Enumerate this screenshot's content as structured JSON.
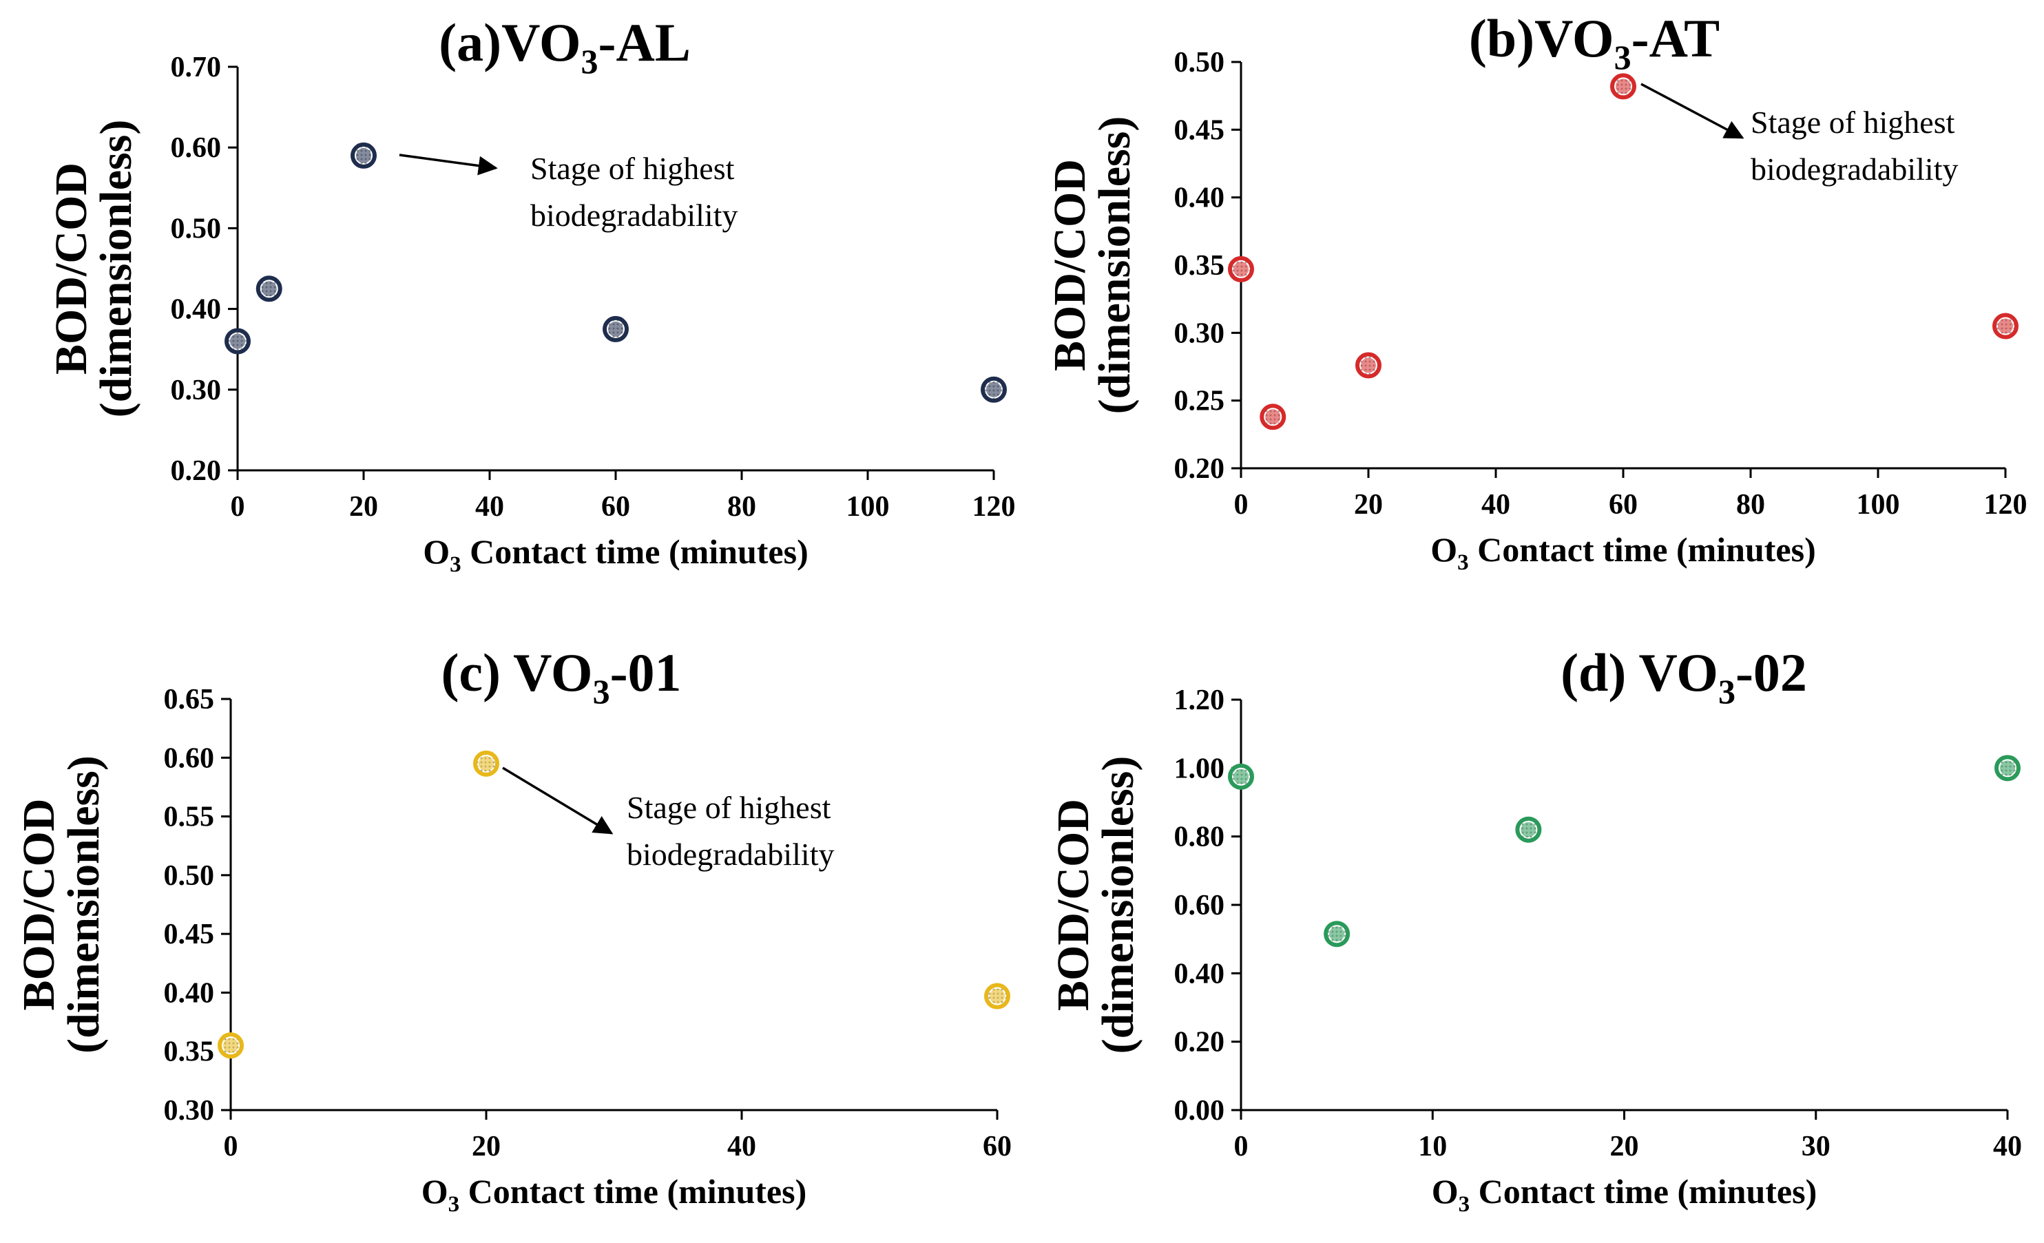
{
  "chart_data": [
    {
      "id": "a",
      "type": "scatter",
      "title": {
        "prefix": "(a)",
        "main": "VO",
        "sub": "3",
        "suffix": "-AL"
      },
      "xlabel": {
        "pre": "O",
        "sub": "3",
        "post": " Contact time (minutes)"
      },
      "ylabel": {
        "line1": "BOD/COD",
        "line2": "(dimensionless)"
      },
      "xlim": [
        0,
        120
      ],
      "xticks": [
        0,
        20,
        40,
        60,
        80,
        100,
        120
      ],
      "xtick_labels": [
        "0",
        "20",
        "40",
        "60",
        "80",
        "100",
        "120"
      ],
      "ylim": [
        0.2,
        0.7
      ],
      "yticks": [
        0.2,
        0.3,
        0.4,
        0.5,
        0.6,
        0.7
      ],
      "ytick_labels": [
        "0.20",
        "0.30",
        "0.40",
        "0.50",
        "0.60",
        "0.70"
      ],
      "color": "#1f2d4d",
      "x": [
        0,
        5,
        20,
        60,
        120
      ],
      "y": [
        0.36,
        0.425,
        0.59,
        0.375,
        0.3
      ],
      "annotation": {
        "line1": "Stage of highest",
        "line2": "biodegradability",
        "x": 20,
        "y": 0.59
      }
    },
    {
      "id": "b",
      "type": "scatter",
      "title": {
        "prefix": "(b)",
        "main": "VO",
        "sub": "3",
        "suffix": "-AT"
      },
      "xlabel": {
        "pre": "O",
        "sub": "3",
        "post": " Contact time (minutes)"
      },
      "ylabel": {
        "line1": "BOD/COD",
        "line2": "(dimensionless)"
      },
      "xlim": [
        0,
        120
      ],
      "xticks": [
        0,
        20,
        40,
        60,
        80,
        100,
        120
      ],
      "xtick_labels": [
        "0",
        "20",
        "40",
        "60",
        "80",
        "100",
        "120"
      ],
      "ylim": [
        0.2,
        0.5
      ],
      "yticks": [
        0.2,
        0.25,
        0.3,
        0.35,
        0.4,
        0.45,
        0.5
      ],
      "ytick_labels": [
        "0.20",
        "0.25",
        "0.30",
        "0.35",
        "0.40",
        "0.45",
        "0.50"
      ],
      "color": "#d62a2a",
      "x": [
        0,
        5,
        20,
        60,
        120
      ],
      "y": [
        0.347,
        0.238,
        0.276,
        0.482,
        0.305
      ],
      "annotation": {
        "line1": "Stage of highest",
        "line2": "biodegradability",
        "x": 60,
        "y": 0.482
      }
    },
    {
      "id": "c",
      "type": "scatter",
      "title": {
        "prefix": "(c) ",
        "main": "VO",
        "sub": "3",
        "suffix": "-01"
      },
      "xlabel": {
        "pre": "O",
        "sub": "3",
        "post": " Contact time (minutes)"
      },
      "ylabel": {
        "line1": "BOD/COD",
        "line2": "(dimensionless)"
      },
      "xlim": [
        0,
        60
      ],
      "xticks": [
        0,
        20,
        40,
        60
      ],
      "xtick_labels": [
        "0",
        "20",
        "40",
        "60"
      ],
      "ylim": [
        0.3,
        0.65
      ],
      "yticks": [
        0.3,
        0.35,
        0.4,
        0.45,
        0.5,
        0.55,
        0.6,
        0.65
      ],
      "ytick_labels": [
        "0.30",
        "0.35",
        "0.40",
        "0.45",
        "0.50",
        "0.55",
        "0.60",
        "0.65"
      ],
      "color": "#e8b81a",
      "x": [
        0,
        20,
        60
      ],
      "y": [
        0.355,
        0.595,
        0.397
      ],
      "annotation": {
        "line1": "Stage of highest",
        "line2": "biodegradability",
        "x": 20,
        "y": 0.595
      }
    },
    {
      "id": "d",
      "type": "scatter",
      "title": {
        "prefix": "(d) ",
        "main": "VO",
        "sub": "3",
        "suffix": "-02"
      },
      "xlabel": {
        "pre": "O",
        "sub": "3",
        "post": " Contact time (minutes)"
      },
      "ylabel": {
        "line1": "BOD/COD",
        "line2": "(dimensionless)"
      },
      "xlim": [
        0,
        40
      ],
      "xticks": [
        0,
        10,
        20,
        30,
        40
      ],
      "xtick_labels": [
        "0",
        "10",
        "20",
        "30",
        "40"
      ],
      "ylim": [
        0,
        1.2
      ],
      "yticks": [
        0,
        0.2,
        0.4,
        0.6,
        0.8,
        1.0,
        1.2
      ],
      "ytick_labels": [
        "0.00",
        "0.20",
        "0.40",
        "0.60",
        "0.80",
        "1.00",
        "1.20"
      ],
      "color": "#2a9a5a",
      "x": [
        0,
        5,
        15,
        40
      ],
      "y": [
        0.975,
        0.515,
        0.82,
        1.0
      ],
      "annotation": null
    }
  ]
}
